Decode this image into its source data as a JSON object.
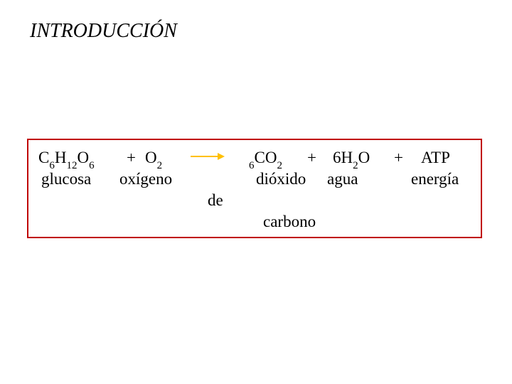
{
  "title": "INTRODUCCIÓN",
  "box": {
    "border_color": "#c00000",
    "arrow_color": "#ffc000"
  },
  "formula": {
    "glucose_C": "C",
    "glucose_6a": "6",
    "glucose_H": "H",
    "glucose_12": "12",
    "glucose_O": "O",
    "glucose_6b": "6",
    "plus": "+",
    "o2_O": "O",
    "o2_2": "2",
    "co2_6": "6",
    "co2_C": "C",
    "co2_O": "O",
    "co2_2": "2",
    "h2o_6": "6",
    "h2o_H": "H",
    "h2o_2": "2",
    "h2o_O": "O",
    "atp": "ATP"
  },
  "labels": {
    "glucosa": "glucosa",
    "oxigeno": "oxígeno",
    "dioxido": "dióxido",
    "agua": "agua",
    "energia": "energía",
    "de": "de",
    "carbono": "carbono"
  }
}
